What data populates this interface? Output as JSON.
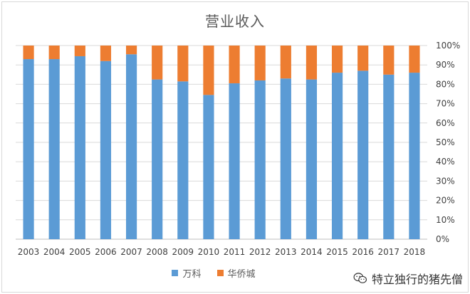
{
  "chart_data": {
    "type": "bar",
    "stacked": "percent",
    "title": "营业收入",
    "categories": [
      "2003",
      "2004",
      "2005",
      "2006",
      "2007",
      "2008",
      "2009",
      "2010",
      "2011",
      "2012",
      "2013",
      "2014",
      "2015",
      "2016",
      "2017",
      "2018"
    ],
    "series": [
      {
        "name": "万科",
        "color": "#5b9bd5",
        "values": [
          93,
          93,
          94.5,
          92,
          95.5,
          82.5,
          81.5,
          74.5,
          80.5,
          82,
          83,
          82.5,
          86,
          87,
          85,
          86
        ]
      },
      {
        "name": "华侨城",
        "color": "#ed7d31",
        "values": [
          7,
          7,
          5.5,
          8,
          4.5,
          17.5,
          18.5,
          25.5,
          19.5,
          18,
          17,
          17.5,
          14,
          13,
          15,
          14
        ]
      }
    ],
    "y_ticks": [
      "0%",
      "10%",
      "20%",
      "30%",
      "40%",
      "50%",
      "60%",
      "70%",
      "80%",
      "90%",
      "100%"
    ],
    "ylim": [
      0,
      100
    ],
    "y_axis_side": "right",
    "grid": true,
    "legend_position": "bottom"
  },
  "watermark": {
    "text": "特立独行的猪先僧",
    "icon": "wechat-icon"
  }
}
